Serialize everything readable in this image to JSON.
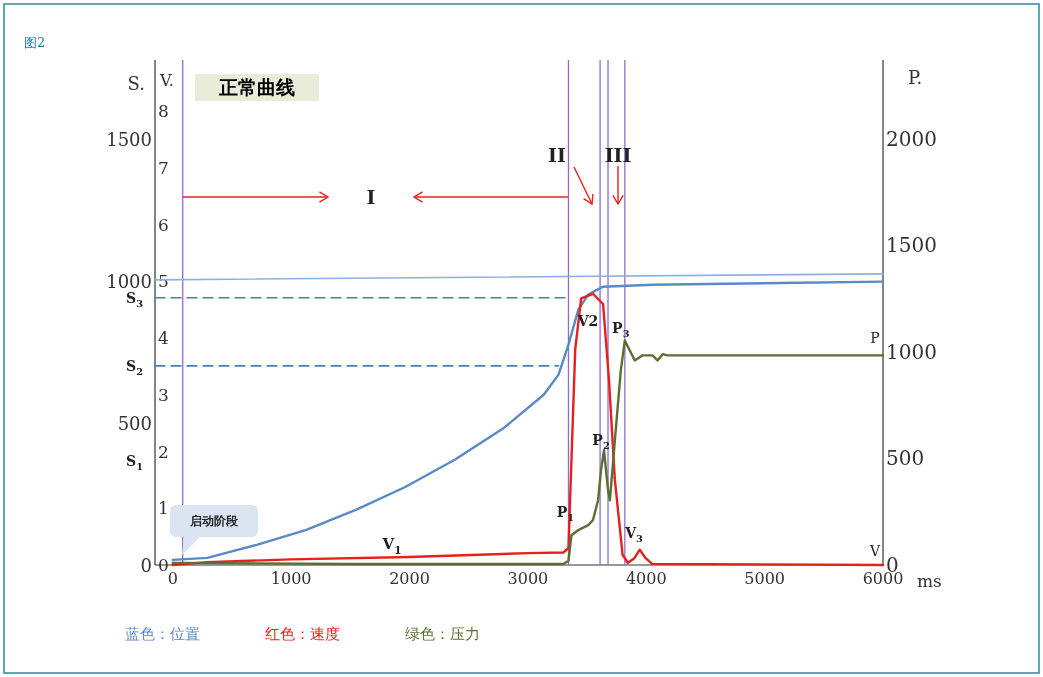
{
  "chart_data": {
    "type": "line",
    "title": "正常曲线",
    "xlabel": "ms",
    "ylabel": "S.",
    "y2label": "P.",
    "y3label": "V.",
    "xlim": [
      -150,
      6000
    ],
    "xticks": [
      0,
      1000,
      2000,
      3000,
      4000,
      5000,
      6000
    ],
    "ylim": [
      0,
      1780
    ],
    "yticks": [
      0,
      500,
      1000,
      1500
    ],
    "y2lim": [
      0,
      2370
    ],
    "y2ticks": [
      0,
      500,
      1000,
      1500,
      2000
    ],
    "y3lim": [
      0,
      8.9
    ],
    "y3ticks": [
      0,
      1,
      2,
      3,
      4,
      5,
      6,
      7,
      8
    ],
    "grid": false,
    "legend": "bottom",
    "marker": "none",
    "series": [
      {
        "name": "蓝色：位置",
        "color": "#5a8ac6",
        "x": [
          0,
          292,
          710,
          1128,
          1546,
          1964,
          2382,
          2800,
          3134,
          3259,
          3343,
          3426,
          3510,
          3635,
          4053,
          6000
        ],
        "values": [
          18,
          25,
          71,
          124,
          194,
          275,
          371,
          484,
          600,
          671,
          777,
          900,
          953,
          981,
          988,
          999
        ]
      },
      {
        "name": "红色：速度",
        "color": "#e8201c",
        "axis": "y3",
        "x": [
          0,
          292,
          1000,
          2000,
          3000,
          3300,
          3343,
          3400,
          3450,
          3550,
          3635,
          3685,
          3735,
          3800,
          3845,
          3900,
          3945,
          3995,
          4050,
          6000
        ],
        "values": [
          0,
          0.05,
          0.1,
          0.14,
          0.21,
          0.22,
          0.3,
          3.8,
          4.7,
          4.78,
          4.6,
          3.27,
          1.5,
          0.18,
          0.04,
          0.12,
          0.27,
          0.12,
          0.02,
          0
        ]
      },
      {
        "name": "绿色：压力",
        "color": "#5b6f32",
        "axis": "y2",
        "x": [
          0,
          1500,
          3300,
          3343,
          3368,
          3426,
          3510,
          3550,
          3593,
          3618,
          3643,
          3677,
          3693,
          3735,
          3785,
          3819,
          3861,
          3903,
          3970,
          4053,
          4095,
          4140,
          4178,
          4250,
          6000
        ],
        "values": [
          10,
          5,
          5,
          20,
          140,
          164,
          187,
          211,
          304,
          445,
          539,
          351,
          304,
          585,
          913,
          1054,
          1007,
          960,
          984,
          984,
          960,
          990,
          984,
          984,
          984
        ]
      },
      {
        "color": "#4a7ebb",
        "line_style": "dashed",
        "x": [
          -150,
          3343
        ],
        "values": [
          942,
          942
        ]
      },
      {
        "color": "#4a7ebb",
        "line_style": "dashed",
        "x": [
          -150,
          3259
        ],
        "values": [
          702,
          702
        ]
      },
      {
        "color": "#8fb0dc",
        "x": [
          -150,
          6000
        ],
        "values": [
          1005,
          1026
        ]
      }
    ],
    "ref_lines": [
      {
        "axis": "x",
        "value": 84,
        "color": "#8e6ccf"
      },
      {
        "axis": "x",
        "value": 3343,
        "color": "#8e6ccf"
      },
      {
        "axis": "x",
        "value": 3610,
        "color": "#8e6ccf"
      },
      {
        "axis": "x",
        "value": 3677,
        "color": "#8e6ccf"
      },
      {
        "axis": "x",
        "value": 3819,
        "color": "#8e6ccf"
      }
    ],
    "annotations": [
      "图2",
      "I",
      "II",
      "III",
      "启动阶段",
      "V$_{1}$",
      "P",
      "V",
      "S$_{1}$",
      "V2",
      "V$_{3}$",
      {
        "text": "S$_{3}$",
        "x": -150,
        "y": 942
      },
      {
        "text": "S$_{2}$",
        "x": -150,
        "y": 702
      },
      {
        "text": "P$_{1}$",
        "x": 3318,
        "y": 187
      },
      {
        "text": "P$_{2}$",
        "x": 3618,
        "y": 441
      },
      {
        "text": "P$_{3}$",
        "x": 3785,
        "y": 835
      }
    ]
  }
}
